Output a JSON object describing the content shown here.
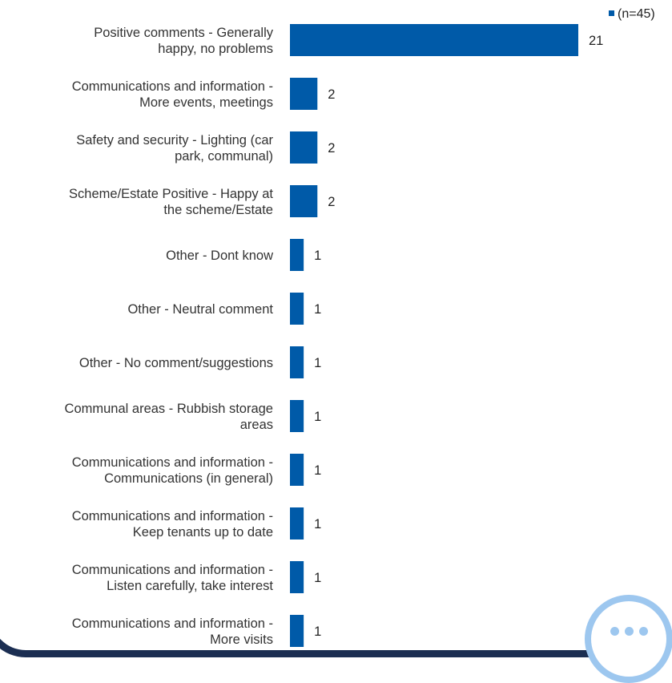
{
  "chart_data": {
    "type": "bar",
    "orientation": "horizontal",
    "categories": [
      [
        "Positive comments - Generally",
        "happy, no problems"
      ],
      [
        "Communications and information -",
        "More events, meetings"
      ],
      [
        "Safety and security - Lighting (car",
        "park, communal)"
      ],
      [
        "Scheme/Estate Positive - Happy at",
        "the scheme/Estate"
      ],
      [
        "Other - Dont know"
      ],
      [
        "Other - Neutral comment"
      ],
      [
        "Other - No comment/suggestions"
      ],
      [
        "Communal areas - Rubbish storage",
        "areas"
      ],
      [
        "Communications and information -",
        "Communications (in general)"
      ],
      [
        "Communications and information -",
        "Keep tenants up to date"
      ],
      [
        "Communications and information -",
        "Listen carefully, take interest"
      ],
      [
        "Communications and information -",
        "More visits"
      ]
    ],
    "series": [
      {
        "name": "(n=45)",
        "values": [
          21,
          2,
          2,
          2,
          1,
          1,
          1,
          1,
          1,
          1,
          1,
          1
        ]
      }
    ],
    "xlim": [
      0,
      21
    ],
    "grid": false,
    "legend": "top-right",
    "bar_color": "#005aa8"
  }
}
